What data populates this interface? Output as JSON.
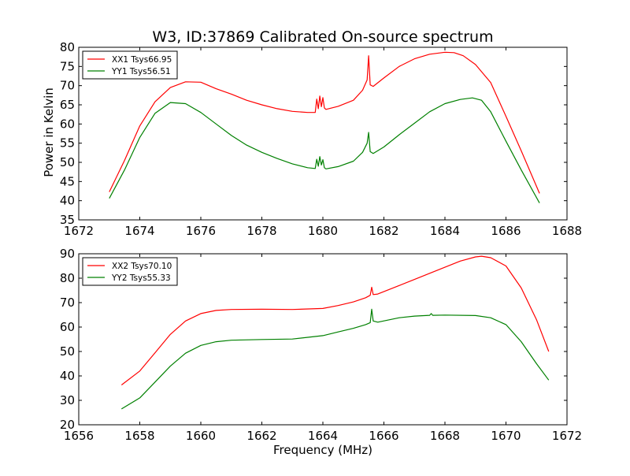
{
  "figure": {
    "title": "W3, ID:37869 Calibrated On-source spectrum",
    "shared_xlabel": "Frequency (MHz)",
    "shared_ylabel": "Power in Kelvin"
  },
  "chart_data": [
    {
      "type": "line",
      "title": "W3, ID:37869 Calibrated On-source spectrum",
      "xlabel": "",
      "ylabel": "Power in Kelvin",
      "xlim": [
        1672,
        1688
      ],
      "ylim": [
        35,
        80
      ],
      "xticks": [
        1672,
        1674,
        1676,
        1678,
        1680,
        1682,
        1684,
        1686,
        1688
      ],
      "yticks": [
        35,
        40,
        45,
        50,
        55,
        60,
        65,
        70,
        75,
        80
      ],
      "grid": false,
      "legend": "top-left",
      "series": [
        {
          "name": "XX1 Tsys66.95",
          "color": "#ff0000",
          "x": [
            1673.0,
            1673.5,
            1674.0,
            1674.5,
            1675.0,
            1675.5,
            1676.0,
            1676.5,
            1677.0,
            1677.5,
            1678.0,
            1678.5,
            1679.0,
            1679.5,
            1679.75,
            1679.8,
            1679.85,
            1679.9,
            1679.95,
            1680.0,
            1680.05,
            1680.1,
            1680.5,
            1681.0,
            1681.3,
            1681.45,
            1681.5,
            1681.55,
            1681.65,
            1682.0,
            1682.5,
            1683.0,
            1683.5,
            1684.0,
            1684.3,
            1684.6,
            1685.0,
            1685.5,
            1686.0,
            1686.5,
            1687.1
          ],
          "y": [
            42.3,
            50.5,
            59.5,
            65.8,
            69.5,
            71.0,
            70.9,
            69.2,
            67.8,
            66.2,
            65.0,
            64.0,
            63.3,
            63.0,
            63.0,
            66.5,
            64.0,
            67.3,
            64.5,
            66.9,
            64.2,
            63.8,
            64.6,
            66.2,
            68.8,
            71.5,
            77.8,
            70.2,
            69.8,
            72.0,
            75.0,
            77.0,
            78.2,
            78.7,
            78.6,
            77.8,
            75.5,
            70.8,
            62.0,
            53.0,
            41.9
          ]
        },
        {
          "name": "YY1 Tsys56.51",
          "color": "#008000",
          "x": [
            1673.0,
            1673.5,
            1674.0,
            1674.5,
            1675.0,
            1675.5,
            1676.0,
            1676.5,
            1677.0,
            1677.5,
            1678.0,
            1678.5,
            1679.0,
            1679.5,
            1679.75,
            1679.8,
            1679.85,
            1679.9,
            1679.95,
            1680.0,
            1680.05,
            1680.1,
            1680.5,
            1681.0,
            1681.3,
            1681.45,
            1681.5,
            1681.55,
            1681.65,
            1682.0,
            1682.5,
            1683.0,
            1683.5,
            1684.0,
            1684.5,
            1684.9,
            1685.2,
            1685.5,
            1686.0,
            1686.5,
            1687.1
          ],
          "y": [
            40.6,
            48.0,
            56.5,
            62.8,
            65.6,
            65.3,
            63.0,
            60.0,
            57.0,
            54.5,
            52.6,
            51.0,
            49.6,
            48.6,
            48.4,
            50.8,
            49.0,
            51.5,
            49.3,
            50.7,
            48.6,
            48.3,
            48.9,
            50.3,
            52.6,
            55.0,
            57.8,
            52.8,
            52.3,
            54.0,
            57.2,
            60.2,
            63.2,
            65.3,
            66.4,
            66.8,
            66.2,
            63.2,
            55.5,
            48.0,
            39.4
          ]
        }
      ]
    },
    {
      "type": "line",
      "title": "",
      "xlabel": "Frequency (MHz)",
      "ylabel": "",
      "xlim": [
        1656,
        1672
      ],
      "ylim": [
        20,
        90
      ],
      "xticks": [
        1656,
        1658,
        1660,
        1662,
        1664,
        1666,
        1668,
        1670,
        1672
      ],
      "yticks": [
        20,
        30,
        40,
        50,
        60,
        70,
        80,
        90
      ],
      "grid": false,
      "legend": "top-left",
      "series": [
        {
          "name": "XX2 Tsys70.10",
          "color": "#ff0000",
          "x": [
            1657.4,
            1658.0,
            1658.5,
            1659.0,
            1659.5,
            1660.0,
            1660.5,
            1661.0,
            1662.0,
            1663.0,
            1664.0,
            1664.5,
            1665.0,
            1665.4,
            1665.55,
            1665.6,
            1665.65,
            1665.8,
            1666.5,
            1667.0,
            1667.5,
            1668.0,
            1668.5,
            1669.0,
            1669.2,
            1669.5,
            1670.0,
            1670.5,
            1671.0,
            1671.4
          ],
          "y": [
            36.3,
            42.0,
            49.5,
            57.0,
            62.5,
            65.5,
            66.8,
            67.2,
            67.3,
            67.2,
            67.6,
            68.8,
            70.3,
            72.0,
            73.0,
            76.3,
            73.3,
            73.5,
            77.0,
            79.5,
            82.0,
            84.5,
            87.0,
            88.7,
            89.0,
            88.4,
            85.0,
            76.0,
            63.0,
            50.0
          ]
        },
        {
          "name": "YY2 Tsys55.33",
          "color": "#008000",
          "x": [
            1657.4,
            1658.0,
            1658.5,
            1659.0,
            1659.5,
            1660.0,
            1660.5,
            1661.0,
            1662.0,
            1663.0,
            1664.0,
            1664.5,
            1665.0,
            1665.4,
            1665.55,
            1665.6,
            1665.65,
            1665.8,
            1666.5,
            1667.0,
            1667.5,
            1667.55,
            1667.6,
            1668.0,
            1669.0,
            1669.5,
            1670.0,
            1670.5,
            1671.0,
            1671.4
          ],
          "y": [
            26.5,
            31.0,
            37.5,
            44.0,
            49.3,
            52.5,
            54.0,
            54.6,
            54.9,
            55.1,
            56.5,
            58.0,
            59.5,
            61.0,
            61.8,
            67.3,
            62.5,
            62.0,
            63.8,
            64.5,
            64.8,
            65.5,
            64.8,
            64.9,
            64.7,
            63.8,
            61.0,
            54.0,
            45.0,
            38.3
          ]
        }
      ]
    }
  ]
}
